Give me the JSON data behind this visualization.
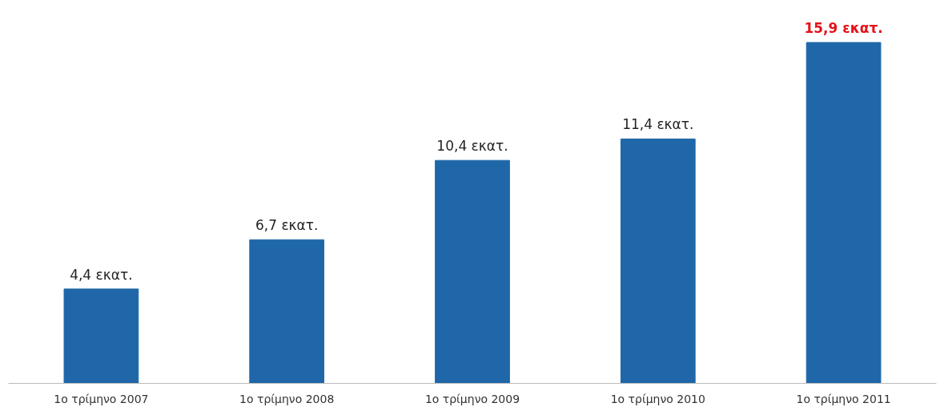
{
  "chart_data": {
    "type": "bar",
    "categories": [
      "1ο τρίμηνο 2007",
      "1ο τρίμηνο 2008",
      "1ο τρίμηνο 2009",
      "1ο τρίμηνο 2010",
      "1ο τρίμηνο 2011"
    ],
    "values": [
      4.4,
      6.7,
      10.4,
      11.4,
      15.9
    ],
    "color": "#1f67a8",
    "value_labels": [
      "4,4 εκατ.",
      "6,7 εκατ.",
      "10,4 εκατ.",
      "11,4 εκατ.",
      "15,9 εκατ."
    ],
    "grid": false
  }
}
